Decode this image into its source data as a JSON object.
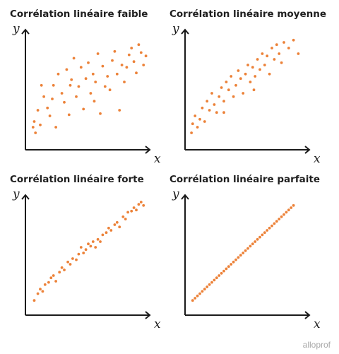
{
  "colors": {
    "points": "#ec8239",
    "axes": "#1a1a1a",
    "title": "#1f1f1f",
    "logo": "#a9a9a9"
  },
  "brand": "alloprof",
  "chart_data": [
    {
      "type": "scatter",
      "title": "Corrélation linéaire faible",
      "xlabel": "x",
      "ylabel": "y",
      "xlim": [
        0,
        1
      ],
      "ylim": [
        0,
        1
      ],
      "grid": false,
      "points": [
        [
          0.04,
          0.15
        ],
        [
          0.05,
          0.2
        ],
        [
          0.06,
          0.1
        ],
        [
          0.08,
          0.3
        ],
        [
          0.1,
          0.17
        ],
        [
          0.11,
          0.52
        ],
        [
          0.13,
          0.42
        ],
        [
          0.16,
          0.32
        ],
        [
          0.18,
          0.25
        ],
        [
          0.2,
          0.4
        ],
        [
          0.21,
          0.52
        ],
        [
          0.23,
          0.15
        ],
        [
          0.25,
          0.62
        ],
        [
          0.28,
          0.45
        ],
        [
          0.3,
          0.37
        ],
        [
          0.32,
          0.66
        ],
        [
          0.34,
          0.26
        ],
        [
          0.36,
          0.57
        ],
        [
          0.38,
          0.76
        ],
        [
          0.4,
          0.42
        ],
        [
          0.42,
          0.51
        ],
        [
          0.44,
          0.68
        ],
        [
          0.46,
          0.31
        ],
        [
          0.48,
          0.58
        ],
        [
          0.5,
          0.72
        ],
        [
          0.52,
          0.45
        ],
        [
          0.54,
          0.62
        ],
        [
          0.56,
          0.55
        ],
        [
          0.58,
          0.8
        ],
        [
          0.6,
          0.27
        ],
        [
          0.62,
          0.69
        ],
        [
          0.64,
          0.51
        ],
        [
          0.66,
          0.6
        ],
        [
          0.68,
          0.48
        ],
        [
          0.7,
          0.74
        ],
        [
          0.72,
          0.82
        ],
        [
          0.74,
          0.62
        ],
        [
          0.76,
          0.3
        ],
        [
          0.78,
          0.7
        ],
        [
          0.8,
          0.55
        ],
        [
          0.82,
          0.68
        ],
        [
          0.84,
          0.79
        ],
        [
          0.86,
          0.85
        ],
        [
          0.88,
          0.73
        ],
        [
          0.9,
          0.63
        ],
        [
          0.92,
          0.88
        ],
        [
          0.94,
          0.81
        ],
        [
          0.96,
          0.7
        ],
        [
          0.98,
          0.78
        ],
        [
          0.35,
          0.52
        ],
        [
          0.55,
          0.38
        ]
      ]
    },
    {
      "type": "scatter",
      "title": "Corrélation linéaire moyenne",
      "xlabel": "x",
      "ylabel": "y",
      "xlim": [
        0,
        1
      ],
      "ylim": [
        0,
        1
      ],
      "grid": false,
      "points": [
        [
          0.03,
          0.1
        ],
        [
          0.04,
          0.18
        ],
        [
          0.06,
          0.25
        ],
        [
          0.08,
          0.15
        ],
        [
          0.1,
          0.22
        ],
        [
          0.12,
          0.32
        ],
        [
          0.14,
          0.2
        ],
        [
          0.16,
          0.38
        ],
        [
          0.18,
          0.3
        ],
        [
          0.2,
          0.45
        ],
        [
          0.22,
          0.35
        ],
        [
          0.24,
          0.28
        ],
        [
          0.26,
          0.42
        ],
        [
          0.28,
          0.5
        ],
        [
          0.3,
          0.38
        ],
        [
          0.32,
          0.55
        ],
        [
          0.34,
          0.48
        ],
        [
          0.36,
          0.6
        ],
        [
          0.38,
          0.42
        ],
        [
          0.4,
          0.52
        ],
        [
          0.42,
          0.65
        ],
        [
          0.44,
          0.58
        ],
        [
          0.46,
          0.45
        ],
        [
          0.48,
          0.62
        ],
        [
          0.5,
          0.7
        ],
        [
          0.52,
          0.55
        ],
        [
          0.54,
          0.68
        ],
        [
          0.56,
          0.6
        ],
        [
          0.58,
          0.75
        ],
        [
          0.6,
          0.66
        ],
        [
          0.62,
          0.8
        ],
        [
          0.64,
          0.7
        ],
        [
          0.66,
          0.78
        ],
        [
          0.68,
          0.62
        ],
        [
          0.7,
          0.85
        ],
        [
          0.72,
          0.75
        ],
        [
          0.74,
          0.88
        ],
        [
          0.76,
          0.8
        ],
        [
          0.78,
          0.72
        ],
        [
          0.8,
          0.9
        ],
        [
          0.84,
          0.85
        ],
        [
          0.88,
          0.92
        ],
        [
          0.92,
          0.8
        ],
        [
          0.3,
          0.28
        ],
        [
          0.55,
          0.48
        ]
      ]
    },
    {
      "type": "scatter",
      "title": "Corrélation linéaire forte",
      "xlabel": "x",
      "ylabel": "y",
      "xlim": [
        0,
        1
      ],
      "ylim": [
        0,
        1
      ],
      "grid": false,
      "points": [
        [
          0.05,
          0.08
        ],
        [
          0.08,
          0.14
        ],
        [
          0.1,
          0.18
        ],
        [
          0.12,
          0.16
        ],
        [
          0.14,
          0.22
        ],
        [
          0.17,
          0.24
        ],
        [
          0.19,
          0.28
        ],
        [
          0.21,
          0.3
        ],
        [
          0.23,
          0.25
        ],
        [
          0.26,
          0.33
        ],
        [
          0.28,
          0.37
        ],
        [
          0.3,
          0.35
        ],
        [
          0.33,
          0.42
        ],
        [
          0.35,
          0.4
        ],
        [
          0.37,
          0.45
        ],
        [
          0.4,
          0.44
        ],
        [
          0.42,
          0.49
        ],
        [
          0.44,
          0.55
        ],
        [
          0.46,
          0.5
        ],
        [
          0.48,
          0.53
        ],
        [
          0.5,
          0.58
        ],
        [
          0.52,
          0.56
        ],
        [
          0.54,
          0.6
        ],
        [
          0.56,
          0.55
        ],
        [
          0.58,
          0.62
        ],
        [
          0.6,
          0.6
        ],
        [
          0.62,
          0.66
        ],
        [
          0.65,
          0.68
        ],
        [
          0.67,
          0.72
        ],
        [
          0.69,
          0.7
        ],
        [
          0.72,
          0.75
        ],
        [
          0.74,
          0.77
        ],
        [
          0.76,
          0.73
        ],
        [
          0.79,
          0.82
        ],
        [
          0.81,
          0.8
        ],
        [
          0.83,
          0.86
        ],
        [
          0.86,
          0.87
        ],
        [
          0.88,
          0.9
        ],
        [
          0.9,
          0.88
        ],
        [
          0.92,
          0.93
        ],
        [
          0.94,
          0.95
        ],
        [
          0.96,
          0.92
        ]
      ]
    },
    {
      "type": "scatter",
      "title": "Corrélation linéaire parfaite",
      "xlabel": "x",
      "ylabel": "y",
      "xlim": [
        0,
        1
      ],
      "ylim": [
        0,
        1
      ],
      "grid": false,
      "points": [
        [
          0.04,
          0.08
        ],
        [
          0.06,
          0.1
        ],
        [
          0.08,
          0.12
        ],
        [
          0.1,
          0.14
        ],
        [
          0.12,
          0.16
        ],
        [
          0.14,
          0.18
        ],
        [
          0.16,
          0.2
        ],
        [
          0.18,
          0.22
        ],
        [
          0.2,
          0.24
        ],
        [
          0.22,
          0.26
        ],
        [
          0.24,
          0.28
        ],
        [
          0.26,
          0.3
        ],
        [
          0.28,
          0.32
        ],
        [
          0.3,
          0.34
        ],
        [
          0.32,
          0.36
        ],
        [
          0.34,
          0.38
        ],
        [
          0.36,
          0.4
        ],
        [
          0.38,
          0.42
        ],
        [
          0.4,
          0.44
        ],
        [
          0.42,
          0.46
        ],
        [
          0.44,
          0.48
        ],
        [
          0.46,
          0.5
        ],
        [
          0.48,
          0.52
        ],
        [
          0.5,
          0.54
        ],
        [
          0.52,
          0.56
        ],
        [
          0.54,
          0.58
        ],
        [
          0.56,
          0.6
        ],
        [
          0.58,
          0.62
        ],
        [
          0.6,
          0.64
        ],
        [
          0.62,
          0.66
        ],
        [
          0.64,
          0.68
        ],
        [
          0.66,
          0.7
        ],
        [
          0.68,
          0.72
        ],
        [
          0.7,
          0.74
        ],
        [
          0.72,
          0.76
        ],
        [
          0.74,
          0.78
        ],
        [
          0.76,
          0.8
        ],
        [
          0.78,
          0.82
        ],
        [
          0.8,
          0.84
        ],
        [
          0.82,
          0.86
        ],
        [
          0.84,
          0.88
        ],
        [
          0.86,
          0.9
        ],
        [
          0.88,
          0.92
        ]
      ]
    }
  ]
}
